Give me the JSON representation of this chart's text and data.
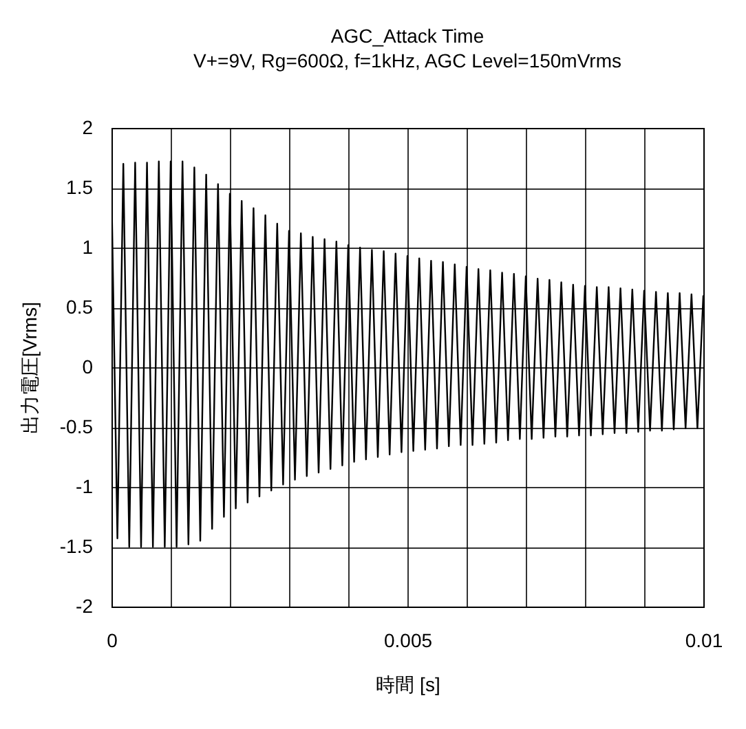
{
  "chart_data": {
    "type": "line",
    "title": "AGC_Attack Time",
    "subtitle": "V+=9V, Rg=600Ω, f=1kHz, AGC Level=150mVrms",
    "xlabel": "時間 [s]",
    "ylabel": "出力電圧[Vrms]",
    "x": [
      0,
      0.0001,
      0.0002,
      0.0003,
      0.0004,
      0.0005,
      0.0006,
      0.0007,
      0.0008,
      0.0009,
      0.001,
      0.0011,
      0.0012,
      0.0013,
      0.0014,
      0.0015,
      0.0016,
      0.0017,
      0.0018,
      0.0019,
      0.002,
      0.0021,
      0.0022,
      0.0023,
      0.0024,
      0.0025,
      0.0026,
      0.0027,
      0.0028,
      0.0029,
      0.003,
      0.0031,
      0.0032,
      0.0033,
      0.0034,
      0.0035,
      0.0036,
      0.0037,
      0.0038,
      0.0039,
      0.004,
      0.0041,
      0.0042,
      0.0043,
      0.0044,
      0.0045,
      0.0046,
      0.0047,
      0.0048,
      0.0049,
      0.005,
      0.0051,
      0.0052,
      0.0053,
      0.0054,
      0.0055,
      0.0056,
      0.0057,
      0.0058,
      0.0059,
      0.006,
      0.0061,
      0.0062,
      0.0063,
      0.0064,
      0.0065,
      0.0066,
      0.0067,
      0.0068,
      0.0069,
      0.007,
      0.0071,
      0.0072,
      0.0073,
      0.0074,
      0.0075,
      0.0076,
      0.0077,
      0.0078,
      0.0079,
      0.008,
      0.0081,
      0.0082,
      0.0083,
      0.0084,
      0.0085,
      0.0086,
      0.0087,
      0.0088,
      0.0089,
      0.009,
      0.0091,
      0.0092,
      0.0093,
      0.0094,
      0.0095,
      0.0096,
      0.0097,
      0.0098,
      0.0099,
      0.01
    ],
    "series": [
      {
        "color": "#000000",
        "values": [
          1.5,
          -1.43,
          1.7,
          -1.5,
          1.71,
          -1.5,
          1.71,
          -1.5,
          1.72,
          -1.5,
          1.72,
          -1.5,
          1.72,
          -1.48,
          1.67,
          -1.45,
          1.61,
          -1.35,
          1.53,
          -1.25,
          1.45,
          -1.18,
          1.39,
          -1.13,
          1.33,
          -1.08,
          1.27,
          -1.03,
          1.2,
          -0.98,
          1.14,
          -0.94,
          1.12,
          -0.91,
          1.09,
          -0.88,
          1.07,
          -0.85,
          1.05,
          -0.82,
          1.02,
          -0.79,
          1.0,
          -0.77,
          0.98,
          -0.75,
          0.97,
          -0.73,
          0.95,
          -0.71,
          0.93,
          -0.7,
          0.91,
          -0.69,
          0.89,
          -0.68,
          0.88,
          -0.66,
          0.86,
          -0.65,
          0.84,
          -0.65,
          0.82,
          -0.64,
          0.81,
          -0.63,
          0.79,
          -0.61,
          0.78,
          -0.6,
          0.76,
          -0.6,
          0.74,
          -0.59,
          0.73,
          -0.58,
          0.71,
          -0.58,
          0.69,
          -0.57,
          0.68,
          -0.57,
          0.67,
          -0.56,
          0.67,
          -0.55,
          0.66,
          -0.55,
          0.65,
          -0.54,
          0.64,
          -0.53,
          0.63,
          -0.53,
          0.62,
          -0.52,
          0.62,
          -0.51,
          0.61,
          -0.51,
          0.6
        ]
      }
    ],
    "xlim": [
      0,
      0.01
    ],
    "xticks": [
      0,
      {
        "value": 0.001,
        "label": null
      },
      {
        "value": 0.002,
        "label": null
      },
      {
        "value": 0.003,
        "label": null
      },
      {
        "value": 0.004,
        "label": null
      },
      0.005,
      {
        "value": 0.006,
        "label": null
      },
      {
        "value": 0.007,
        "label": null
      },
      {
        "value": 0.008,
        "label": null
      },
      {
        "value": 0.009,
        "label": null
      },
      0.01
    ],
    "ylim": [
      -2,
      2
    ],
    "yticks": [
      -2,
      -1.5,
      -1,
      -0.5,
      0,
      0.5,
      1,
      1.5,
      2
    ],
    "grid": true
  }
}
